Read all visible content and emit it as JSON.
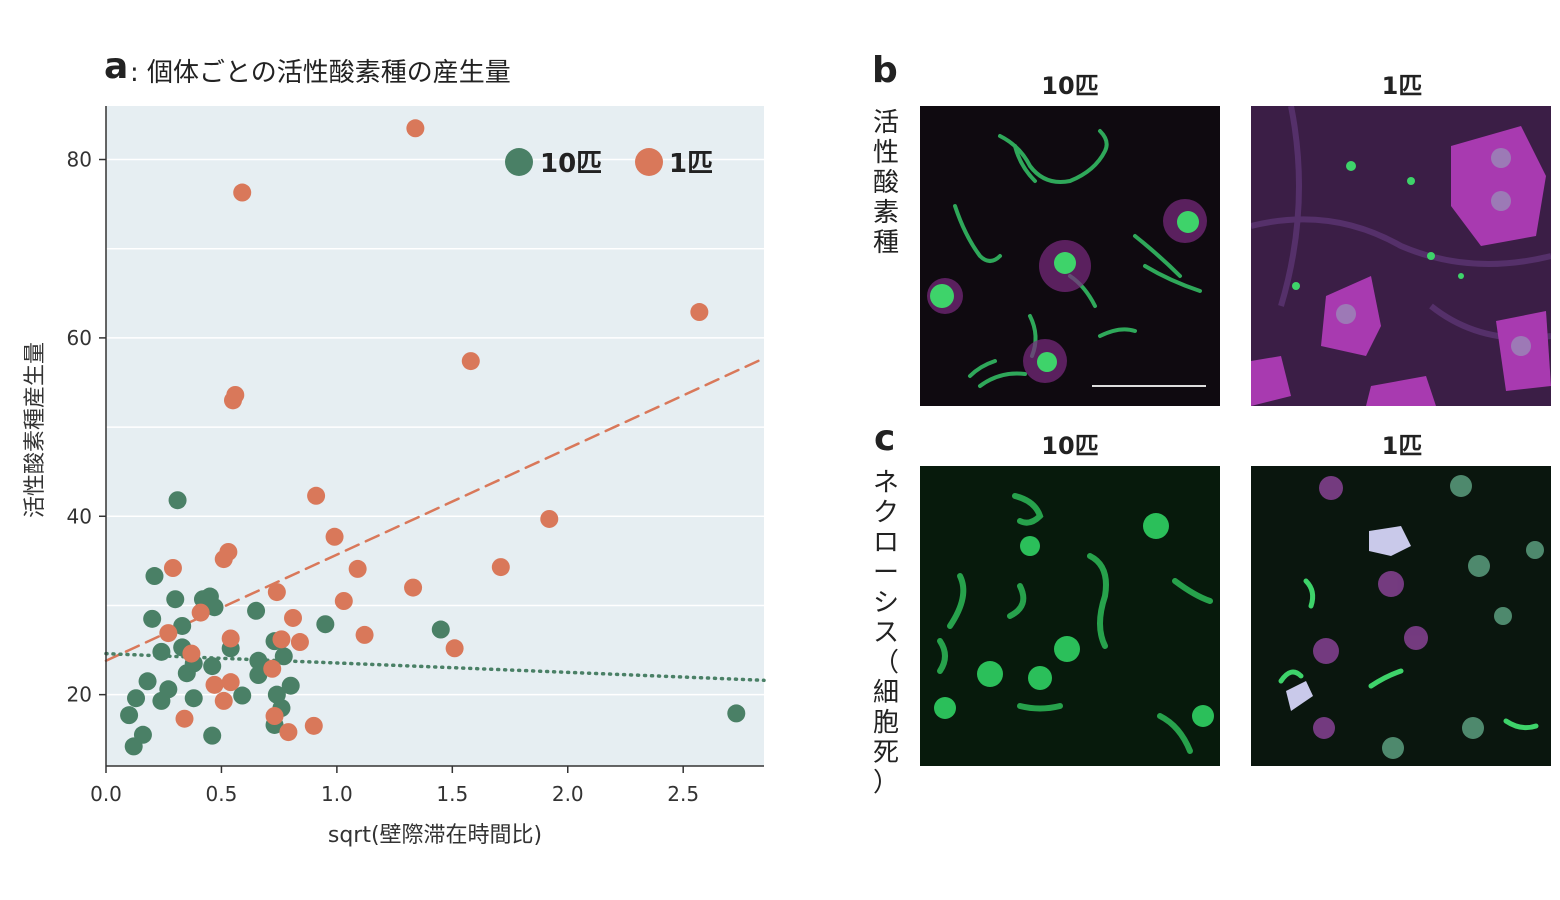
{
  "panel_a": {
    "letter": "a",
    "title": ": 個体ごとの活性酸素種の産生量"
  },
  "panel_b": {
    "letter": "b",
    "row_label": "活性酸素種",
    "col_labels": [
      "10匹",
      "1匹"
    ]
  },
  "panel_c": {
    "letter": "c",
    "row_label": "ネクローシス（細胞死）",
    "col_labels": [
      "10匹",
      "1匹"
    ]
  },
  "colors": {
    "group10": "#4a8066",
    "group1": "#d9785a",
    "plot_bg": "#e6eef2"
  },
  "chart_data": {
    "type": "scatter",
    "title": "",
    "xlabel": "sqrt(壁際滞在時間比)",
    "ylabel": "活性酸素種産生量",
    "xlim": [
      0,
      2.85
    ],
    "ylim": [
      12,
      86
    ],
    "x_ticks": [
      "0.0",
      "0.5",
      "1.0",
      "1.5",
      "2.0",
      "2.5"
    ],
    "y_ticks": [
      "20",
      "40",
      "60",
      "80"
    ],
    "grid": "horizontal",
    "legend_position": "top-right",
    "series": [
      {
        "name": "10匹",
        "color": "#4a8066",
        "points": [
          [
            0.1,
            17.7
          ],
          [
            0.12,
            14.2
          ],
          [
            0.13,
            19.6
          ],
          [
            0.16,
            15.5
          ],
          [
            0.18,
            21.5
          ],
          [
            0.2,
            28.5
          ],
          [
            0.21,
            33.3
          ],
          [
            0.24,
            24.8
          ],
          [
            0.24,
            19.3
          ],
          [
            0.27,
            20.6
          ],
          [
            0.3,
            30.7
          ],
          [
            0.31,
            41.8
          ],
          [
            0.33,
            27.7
          ],
          [
            0.33,
            25.3
          ],
          [
            0.35,
            22.4
          ],
          [
            0.38,
            19.6
          ],
          [
            0.38,
            23.5
          ],
          [
            0.42,
            30.7
          ],
          [
            0.45,
            31.0
          ],
          [
            0.46,
            23.2
          ],
          [
            0.46,
            15.4
          ],
          [
            0.47,
            29.8
          ],
          [
            0.54,
            25.2
          ],
          [
            0.59,
            19.9
          ],
          [
            0.65,
            29.4
          ],
          [
            0.66,
            23.8
          ],
          [
            0.66,
            22.2
          ],
          [
            0.73,
            26.0
          ],
          [
            0.73,
            16.6
          ],
          [
            0.74,
            20.0
          ],
          [
            0.76,
            18.5
          ],
          [
            0.77,
            24.3
          ],
          [
            0.8,
            21.0
          ],
          [
            0.95,
            27.9
          ],
          [
            1.45,
            27.3
          ],
          [
            2.73,
            17.9
          ]
        ]
      },
      {
        "name": "1匹",
        "color": "#d9785a",
        "points": [
          [
            0.27,
            26.9
          ],
          [
            0.29,
            34.2
          ],
          [
            0.34,
            17.3
          ],
          [
            0.37,
            24.6
          ],
          [
            0.41,
            29.2
          ],
          [
            0.47,
            21.1
          ],
          [
            0.51,
            35.2
          ],
          [
            0.51,
            19.3
          ],
          [
            0.53,
            36.0
          ],
          [
            0.54,
            21.4
          ],
          [
            0.54,
            26.3
          ],
          [
            0.55,
            53.0
          ],
          [
            0.56,
            53.6
          ],
          [
            0.59,
            76.3
          ],
          [
            0.72,
            22.9
          ],
          [
            0.73,
            17.6
          ],
          [
            0.74,
            31.5
          ],
          [
            0.76,
            26.2
          ],
          [
            0.79,
            15.8
          ],
          [
            0.81,
            28.6
          ],
          [
            0.84,
            25.9
          ],
          [
            0.9,
            16.5
          ],
          [
            0.91,
            42.3
          ],
          [
            0.99,
            37.7
          ],
          [
            1.03,
            30.5
          ],
          [
            1.09,
            34.1
          ],
          [
            1.12,
            26.7
          ],
          [
            1.33,
            32.0
          ],
          [
            1.34,
            83.5
          ],
          [
            1.51,
            25.2
          ],
          [
            1.58,
            57.4
          ],
          [
            1.71,
            34.3
          ],
          [
            1.92,
            39.7
          ],
          [
            2.57,
            62.9
          ]
        ]
      }
    ],
    "trendlines": [
      {
        "series": "1匹",
        "style": "dashed",
        "intercept": 23.8,
        "slope": 11.9
      },
      {
        "series": "10匹",
        "style": "dotted",
        "intercept": 24.6,
        "slope": -1.05
      }
    ]
  }
}
